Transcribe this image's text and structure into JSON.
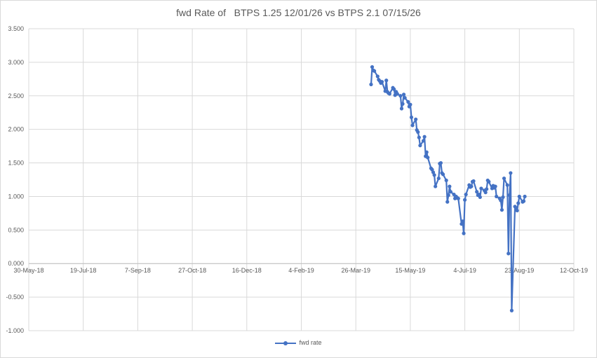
{
  "chart_data": {
    "type": "line",
    "title": "fwd Rate of   BTPS 1.25 12/01/26 vs BTPS 2.1 07/15/26",
    "xlabel": "",
    "ylabel": "",
    "xlim": [
      "2018-05-30",
      "2019-10-12"
    ],
    "ylim": [
      -1.0,
      3.5
    ],
    "x_ticks": [
      "30-May-18",
      "19-Jul-18",
      "7-Sep-18",
      "27-Oct-18",
      "16-Dec-18",
      "4-Feb-19",
      "26-Mar-19",
      "15-May-19",
      "4-Jul-19",
      "23-Aug-19",
      "12-Oct-19"
    ],
    "y_ticks": [
      "3.500",
      "3.000",
      "2.500",
      "2.000",
      "1.500",
      "1.000",
      "0.500",
      "0.000",
      "-0.500",
      "-1.000"
    ],
    "grid": true,
    "legend_position": "bottom",
    "series": [
      {
        "name": "fwd rate",
        "color": "#4472c4",
        "points": [
          {
            "x": "2019-04-09",
            "y": 2.67
          },
          {
            "x": "2019-04-10",
            "y": 2.93
          },
          {
            "x": "2019-04-11",
            "y": 2.88
          },
          {
            "x": "2019-04-12",
            "y": 2.87
          },
          {
            "x": "2019-04-15",
            "y": 2.79
          },
          {
            "x": "2019-04-16",
            "y": 2.74
          },
          {
            "x": "2019-04-17",
            "y": 2.72
          },
          {
            "x": "2019-04-18",
            "y": 2.69
          },
          {
            "x": "2019-04-19",
            "y": 2.71
          },
          {
            "x": "2019-04-22",
            "y": 2.57
          },
          {
            "x": "2019-04-23",
            "y": 2.73
          },
          {
            "x": "2019-04-24",
            "y": 2.56
          },
          {
            "x": "2019-04-25",
            "y": 2.54
          },
          {
            "x": "2019-04-26",
            "y": 2.53
          },
          {
            "x": "2019-04-29",
            "y": 2.62
          },
          {
            "x": "2019-04-30",
            "y": 2.6
          },
          {
            "x": "2019-05-01",
            "y": 2.51
          },
          {
            "x": "2019-05-02",
            "y": 2.56
          },
          {
            "x": "2019-05-03",
            "y": 2.53
          },
          {
            "x": "2019-05-06",
            "y": 2.5
          },
          {
            "x": "2019-05-07",
            "y": 2.31
          },
          {
            "x": "2019-05-08",
            "y": 2.38
          },
          {
            "x": "2019-05-09",
            "y": 2.52
          },
          {
            "x": "2019-05-10",
            "y": 2.47
          },
          {
            "x": "2019-05-13",
            "y": 2.41
          },
          {
            "x": "2019-05-14",
            "y": 2.34
          },
          {
            "x": "2019-05-15",
            "y": 2.37
          },
          {
            "x": "2019-05-16",
            "y": 2.18
          },
          {
            "x": "2019-05-17",
            "y": 2.06
          },
          {
            "x": "2019-05-20",
            "y": 2.15
          },
          {
            "x": "2019-05-21",
            "y": 1.99
          },
          {
            "x": "2019-05-22",
            "y": 1.96
          },
          {
            "x": "2019-05-23",
            "y": 1.88
          },
          {
            "x": "2019-05-24",
            "y": 1.76
          },
          {
            "x": "2019-05-27",
            "y": 1.83
          },
          {
            "x": "2019-05-28",
            "y": 1.89
          },
          {
            "x": "2019-05-29",
            "y": 1.6
          },
          {
            "x": "2019-05-30",
            "y": 1.66
          },
          {
            "x": "2019-05-31",
            "y": 1.58
          },
          {
            "x": "2019-06-03",
            "y": 1.42
          },
          {
            "x": "2019-06-04",
            "y": 1.4
          },
          {
            "x": "2019-06-05",
            "y": 1.36
          },
          {
            "x": "2019-06-06",
            "y": 1.32
          },
          {
            "x": "2019-06-07",
            "y": 1.15
          },
          {
            "x": "2019-06-10",
            "y": 1.27
          },
          {
            "x": "2019-06-11",
            "y": 1.49
          },
          {
            "x": "2019-06-12",
            "y": 1.5
          },
          {
            "x": "2019-06-13",
            "y": 1.35
          },
          {
            "x": "2019-06-14",
            "y": 1.33
          },
          {
            "x": "2019-06-17",
            "y": 1.24
          },
          {
            "x": "2019-06-18",
            "y": 0.92
          },
          {
            "x": "2019-06-19",
            "y": 1.02
          },
          {
            "x": "2019-06-20",
            "y": 1.15
          },
          {
            "x": "2019-06-21",
            "y": 1.07
          },
          {
            "x": "2019-06-24",
            "y": 1.03
          },
          {
            "x": "2019-06-25",
            "y": 0.97
          },
          {
            "x": "2019-06-26",
            "y": 1.0
          },
          {
            "x": "2019-06-27",
            "y": 0.98
          },
          {
            "x": "2019-06-28",
            "y": 0.97
          },
          {
            "x": "2019-07-01",
            "y": 0.59
          },
          {
            "x": "2019-07-02",
            "y": 0.63
          },
          {
            "x": "2019-07-03",
            "y": 0.45
          },
          {
            "x": "2019-07-04",
            "y": 0.95
          },
          {
            "x": "2019-07-05",
            "y": 1.03
          },
          {
            "x": "2019-07-08",
            "y": 1.17
          },
          {
            "x": "2019-07-09",
            "y": 1.14
          },
          {
            "x": "2019-07-10",
            "y": 1.15
          },
          {
            "x": "2019-07-11",
            "y": 1.22
          },
          {
            "x": "2019-07-12",
            "y": 1.23
          },
          {
            "x": "2019-07-15",
            "y": 1.07
          },
          {
            "x": "2019-07-16",
            "y": 1.02
          },
          {
            "x": "2019-07-17",
            "y": 1.03
          },
          {
            "x": "2019-07-18",
            "y": 0.99
          },
          {
            "x": "2019-07-19",
            "y": 1.12
          },
          {
            "x": "2019-07-22",
            "y": 1.09
          },
          {
            "x": "2019-07-23",
            "y": 1.06
          },
          {
            "x": "2019-07-24",
            "y": 1.11
          },
          {
            "x": "2019-07-25",
            "y": 1.24
          },
          {
            "x": "2019-07-26",
            "y": 1.22
          },
          {
            "x": "2019-07-29",
            "y": 1.12
          },
          {
            "x": "2019-07-30",
            "y": 1.16
          },
          {
            "x": "2019-07-31",
            "y": 1.13
          },
          {
            "x": "2019-08-01",
            "y": 1.15
          },
          {
            "x": "2019-08-02",
            "y": 1.0
          },
          {
            "x": "2019-08-05",
            "y": 0.97
          },
          {
            "x": "2019-08-06",
            "y": 0.94
          },
          {
            "x": "2019-08-07",
            "y": 0.8
          },
          {
            "x": "2019-08-08",
            "y": 0.99
          },
          {
            "x": "2019-08-09",
            "y": 1.27
          },
          {
            "x": "2019-08-12",
            "y": 1.17
          },
          {
            "x": "2019-08-13",
            "y": 0.15
          },
          {
            "x": "2019-08-14",
            "y": 1.02
          },
          {
            "x": "2019-08-15",
            "y": 1.35
          },
          {
            "x": "2019-08-16",
            "y": -0.7
          },
          {
            "x": "2019-08-19",
            "y": 0.85
          },
          {
            "x": "2019-08-20",
            "y": 0.83
          },
          {
            "x": "2019-08-21",
            "y": 0.79
          },
          {
            "x": "2019-08-22",
            "y": 0.9
          },
          {
            "x": "2019-08-23",
            "y": 1.0
          },
          {
            "x": "2019-08-26",
            "y": 0.92
          },
          {
            "x": "2019-08-27",
            "y": 0.93
          },
          {
            "x": "2019-08-28",
            "y": 1.0
          }
        ]
      }
    ]
  }
}
